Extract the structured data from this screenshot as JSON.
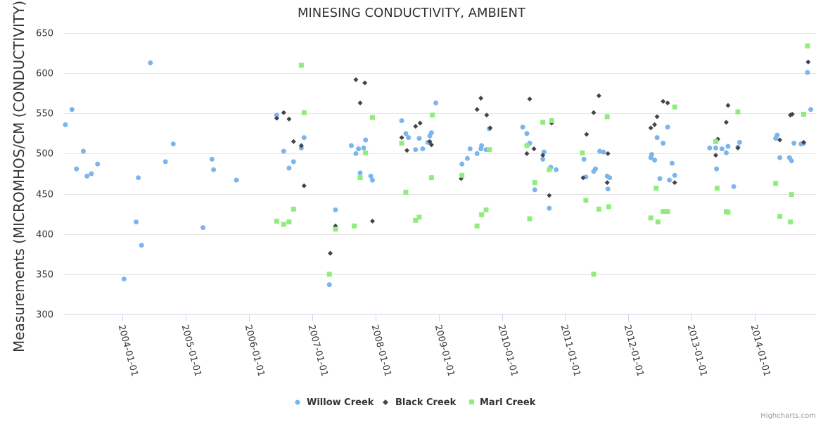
{
  "chart_data": {
    "type": "scatter",
    "title": "MINESING CONDUCTIVITY, AMBIENT",
    "xlabel": "",
    "ylabel": "Measurements (MICROMHOS/CM (CONDUCTIVITY))",
    "ylim": [
      300,
      650
    ],
    "yticks": [
      300,
      350,
      400,
      450,
      500,
      550,
      600,
      650
    ],
    "xlim": [
      "2003-01-24",
      "2014-12-20"
    ],
    "xticks": [
      "2004-01-01",
      "2005-01-01",
      "2006-01-01",
      "2007-01-01",
      "2008-01-01",
      "2009-01-01",
      "2010-01-01",
      "2011-01-01",
      "2012-01-01",
      "2013-01-01",
      "2014-01-01"
    ],
    "grid": "horizontal",
    "legend_position": "bottom-center",
    "series": [
      {
        "name": "Willow Creek",
        "color": "#7cb5ec",
        "marker": "circle",
        "points": [
          [
            "2003-02-05",
            536
          ],
          [
            "2003-03-15",
            555
          ],
          [
            "2003-04-10",
            481
          ],
          [
            "2003-05-20",
            503
          ],
          [
            "2003-06-10",
            472
          ],
          [
            "2003-07-05",
            475
          ],
          [
            "2003-08-10",
            487
          ],
          [
            "2004-01-10",
            344
          ],
          [
            "2004-03-20",
            415
          ],
          [
            "2004-04-01",
            470
          ],
          [
            "2004-04-20",
            386
          ],
          [
            "2004-06-10",
            613
          ],
          [
            "2004-09-05",
            490
          ],
          [
            "2004-10-20",
            512
          ],
          [
            "2005-04-10",
            408
          ],
          [
            "2005-06-01",
            493
          ],
          [
            "2005-06-10",
            480
          ],
          [
            "2005-10-20",
            467
          ],
          [
            "2006-06-10",
            548
          ],
          [
            "2006-07-20",
            503
          ],
          [
            "2006-08-20",
            482
          ],
          [
            "2006-09-15",
            490
          ],
          [
            "2006-10-30",
            507
          ],
          [
            "2006-11-15",
            520
          ],
          [
            "2007-04-10",
            337
          ],
          [
            "2007-05-15",
            430
          ],
          [
            "2007-08-15",
            510
          ],
          [
            "2007-09-10",
            500
          ],
          [
            "2007-09-25",
            506
          ],
          [
            "2007-10-05",
            476
          ],
          [
            "2007-10-25",
            507
          ],
          [
            "2007-11-05",
            517
          ],
          [
            "2007-12-05",
            472
          ],
          [
            "2007-12-15",
            467
          ],
          [
            "2008-06-01",
            541
          ],
          [
            "2008-06-25",
            525
          ],
          [
            "2008-07-10",
            520
          ],
          [
            "2008-08-20",
            505
          ],
          [
            "2008-09-10",
            519
          ],
          [
            "2008-09-30",
            506
          ],
          [
            "2008-10-30",
            514
          ],
          [
            "2008-11-10",
            522
          ],
          [
            "2008-11-20",
            526
          ],
          [
            "2008-12-15",
            563
          ],
          [
            "2009-05-15",
            487
          ],
          [
            "2009-06-15",
            494
          ],
          [
            "2009-07-01",
            506
          ],
          [
            "2009-08-10",
            500
          ],
          [
            "2009-09-01",
            506
          ],
          [
            "2009-09-05",
            510
          ],
          [
            "2009-10-01",
            505
          ],
          [
            "2009-10-20",
            531
          ],
          [
            "2010-05-01",
            533
          ],
          [
            "2010-05-25",
            525
          ],
          [
            "2010-06-10",
            513
          ],
          [
            "2010-07-10",
            455
          ],
          [
            "2010-08-25",
            493
          ],
          [
            "2010-09-01",
            502
          ],
          [
            "2010-10-01",
            432
          ],
          [
            "2010-10-10",
            483
          ],
          [
            "2010-11-10",
            480
          ],
          [
            "2011-04-20",
            493
          ],
          [
            "2011-05-01",
            471
          ],
          [
            "2011-06-15",
            478
          ],
          [
            "2011-06-25",
            481
          ],
          [
            "2011-07-20",
            503
          ],
          [
            "2011-08-10",
            502
          ],
          [
            "2011-09-01",
            472
          ],
          [
            "2011-09-05",
            456
          ],
          [
            "2011-09-15",
            470
          ],
          [
            "2012-05-10",
            495
          ],
          [
            "2012-05-15",
            499
          ],
          [
            "2012-06-01",
            492
          ],
          [
            "2012-06-15",
            520
          ],
          [
            "2012-07-01",
            469
          ],
          [
            "2012-07-20",
            513
          ],
          [
            "2012-08-15",
            533
          ],
          [
            "2012-08-25",
            467
          ],
          [
            "2012-09-10",
            488
          ],
          [
            "2012-09-25",
            473
          ],
          [
            "2013-04-15",
            507
          ],
          [
            "2013-05-20",
            507
          ],
          [
            "2013-05-25",
            481
          ],
          [
            "2013-06-25",
            506
          ],
          [
            "2013-07-20",
            501
          ],
          [
            "2013-07-30",
            509
          ],
          [
            "2013-09-01",
            459
          ],
          [
            "2013-09-25",
            508
          ],
          [
            "2013-10-05",
            514
          ],
          [
            "2014-05-01",
            519
          ],
          [
            "2014-05-10",
            523
          ],
          [
            "2014-05-25",
            495
          ],
          [
            "2014-07-20",
            495
          ],
          [
            "2014-08-01",
            491
          ],
          [
            "2014-08-15",
            513
          ],
          [
            "2014-09-25",
            512
          ],
          [
            "2014-10-10",
            513
          ],
          [
            "2014-11-01",
            601
          ],
          [
            "2014-11-20",
            555
          ]
        ]
      },
      {
        "name": "Black Creek",
        "color": "#434348",
        "marker": "diamond",
        "points": [
          [
            "2006-06-10",
            544
          ],
          [
            "2006-07-20",
            551
          ],
          [
            "2006-08-20",
            543
          ],
          [
            "2006-09-15",
            515
          ],
          [
            "2006-10-30",
            510
          ],
          [
            "2006-11-15",
            460
          ],
          [
            "2007-05-15",
            410
          ],
          [
            "2007-04-15",
            376
          ],
          [
            "2007-09-10",
            592
          ],
          [
            "2007-10-05",
            563
          ],
          [
            "2007-11-01",
            588
          ],
          [
            "2007-12-15",
            416
          ],
          [
            "2008-06-01",
            520
          ],
          [
            "2008-07-01",
            504
          ],
          [
            "2008-08-20",
            534
          ],
          [
            "2008-09-15",
            538
          ],
          [
            "2008-11-10",
            515
          ],
          [
            "2008-11-20",
            511
          ],
          [
            "2009-05-10",
            469
          ],
          [
            "2009-08-10",
            555
          ],
          [
            "2009-09-01",
            569
          ],
          [
            "2009-10-05",
            548
          ],
          [
            "2009-10-25",
            532
          ],
          [
            "2010-05-25",
            500
          ],
          [
            "2010-06-10",
            568
          ],
          [
            "2010-07-05",
            506
          ],
          [
            "2010-08-25",
            498
          ],
          [
            "2010-10-01",
            448
          ],
          [
            "2010-10-15",
            538
          ],
          [
            "2011-04-15",
            470
          ],
          [
            "2011-05-05",
            524
          ],
          [
            "2011-06-15",
            551
          ],
          [
            "2011-07-15",
            572
          ],
          [
            "2011-09-01",
            464
          ],
          [
            "2011-09-05",
            500
          ],
          [
            "2012-05-10",
            532
          ],
          [
            "2012-06-01",
            536
          ],
          [
            "2012-06-15",
            546
          ],
          [
            "2012-07-20",
            565
          ],
          [
            "2012-08-15",
            563
          ],
          [
            "2012-09-25",
            464
          ],
          [
            "2013-05-20",
            498
          ],
          [
            "2013-06-01",
            518
          ],
          [
            "2013-07-20",
            539
          ],
          [
            "2013-07-30",
            560
          ],
          [
            "2013-09-25",
            507
          ],
          [
            "2014-05-25",
            517
          ],
          [
            "2014-07-25",
            548
          ],
          [
            "2014-08-05",
            549
          ],
          [
            "2014-10-10",
            514
          ],
          [
            "2014-11-05",
            614
          ]
        ]
      },
      {
        "name": "Marl Creek",
        "color": "#90ed7d",
        "marker": "square",
        "points": [
          [
            "2006-06-10",
            416
          ],
          [
            "2006-07-20",
            412
          ],
          [
            "2006-08-20",
            415
          ],
          [
            "2006-09-15",
            431
          ],
          [
            "2006-10-30",
            610
          ],
          [
            "2006-11-15",
            551
          ],
          [
            "2007-04-10",
            350
          ],
          [
            "2007-05-15",
            406
          ],
          [
            "2007-09-01",
            410
          ],
          [
            "2007-10-05",
            470
          ],
          [
            "2007-11-05",
            501
          ],
          [
            "2007-12-15",
            545
          ],
          [
            "2008-06-01",
            513
          ],
          [
            "2008-06-25",
            452
          ],
          [
            "2008-08-20",
            417
          ],
          [
            "2008-09-10",
            421
          ],
          [
            "2008-11-20",
            470
          ],
          [
            "2008-11-25",
            548
          ],
          [
            "2009-05-15",
            473
          ],
          [
            "2009-08-10",
            410
          ],
          [
            "2009-09-05",
            424
          ],
          [
            "2009-10-01",
            430
          ],
          [
            "2009-10-20",
            505
          ],
          [
            "2010-05-25",
            510
          ],
          [
            "2010-06-10",
            419
          ],
          [
            "2010-07-10",
            464
          ],
          [
            "2010-08-25",
            539
          ],
          [
            "2010-10-01",
            480
          ],
          [
            "2010-10-15",
            541
          ],
          [
            "2011-04-10",
            501
          ],
          [
            "2011-05-01",
            442
          ],
          [
            "2011-06-15",
            350
          ],
          [
            "2011-07-15",
            431
          ],
          [
            "2011-09-01",
            546
          ],
          [
            "2011-09-10",
            434
          ],
          [
            "2012-05-10",
            420
          ],
          [
            "2012-06-10",
            457
          ],
          [
            "2012-06-20",
            415
          ],
          [
            "2012-07-20",
            428
          ],
          [
            "2012-08-15",
            428
          ],
          [
            "2012-09-25",
            558
          ],
          [
            "2013-05-20",
            515
          ],
          [
            "2013-05-28",
            457
          ],
          [
            "2013-07-20",
            428
          ],
          [
            "2013-07-30",
            427
          ],
          [
            "2013-09-25",
            552
          ],
          [
            "2014-05-01",
            463
          ],
          [
            "2014-05-25",
            422
          ],
          [
            "2014-07-25",
            415
          ],
          [
            "2014-08-01",
            449
          ],
          [
            "2014-10-10",
            549
          ],
          [
            "2014-11-01",
            634
          ]
        ]
      }
    ]
  },
  "credit": "Highcharts.com"
}
